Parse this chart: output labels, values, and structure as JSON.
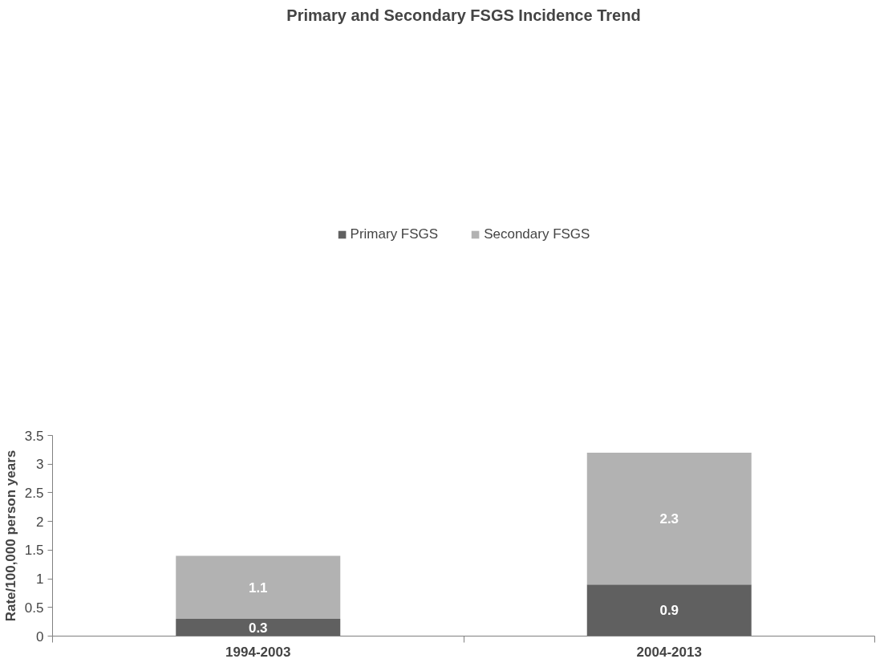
{
  "chart_data": {
    "type": "bar",
    "title": "Primary and Secondary FSGS Incidence Trend",
    "ylabel": "Rate/100,000 person years",
    "categories": [
      "1994-2003",
      "2004-2013"
    ],
    "series": [
      {
        "name": "Primary FSGS",
        "color": "#606060",
        "values": [
          0.3,
          0.9
        ]
      },
      {
        "name": "Secondary FSGS",
        "color": "#b2b2b2",
        "values": [
          1.1,
          2.3
        ]
      }
    ],
    "stacked": true,
    "data_labels": true,
    "grid": false,
    "legend": "top",
    "ylim": [
      0,
      3.5
    ],
    "yticks": [
      0,
      {
        "value": 0.5,
        "label": "0.5"
      },
      1,
      {
        "value": 1.5,
        "label": "1.5"
      },
      2,
      {
        "value": 2.5,
        "label": "2.5"
      },
      3,
      {
        "value": 3.5,
        "label": "3.5"
      }
    ]
  }
}
